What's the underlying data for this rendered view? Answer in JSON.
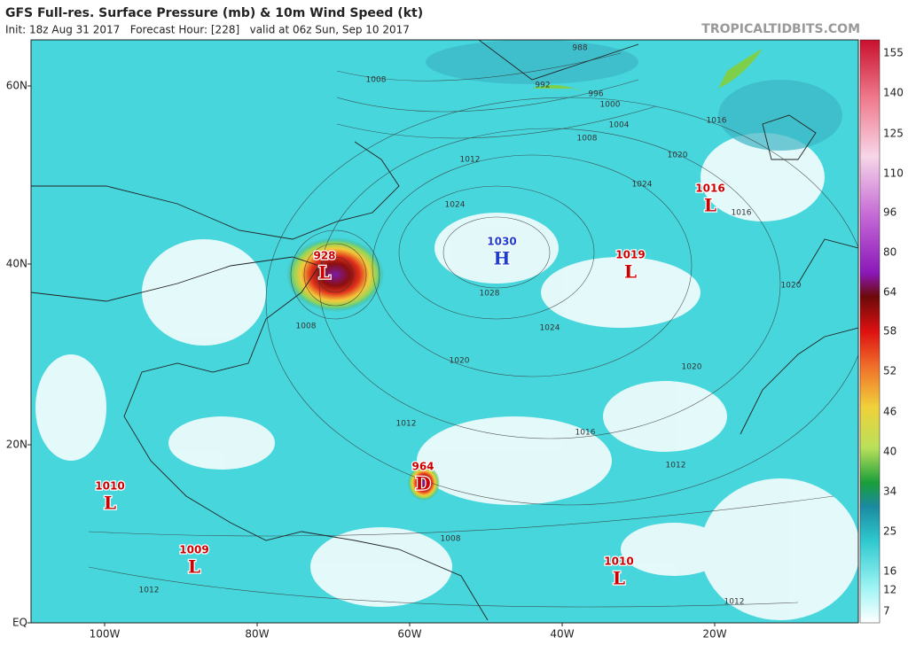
{
  "header": {
    "title": "GFS Full-res. Surface Pressure (mb) & 10m Wind Speed (kt)",
    "subtitle": "Init: 18z Aug 31 2017   Forecast Hour: [228]   valid at 06z Sun, Sep 10 2017",
    "site": "TROPICALTIDBITS.COM"
  },
  "map": {
    "lat_labels": [
      "60N",
      "40N",
      "20N",
      "EQ"
    ],
    "lon_labels": [
      "100W",
      "80W",
      "60W",
      "40W",
      "20W"
    ],
    "centers": [
      {
        "pressure": "928",
        "symbol": "L"
      },
      {
        "pressure": "1030",
        "symbol": "H"
      },
      {
        "pressure": "1019",
        "symbol": "L"
      },
      {
        "pressure": "1016",
        "symbol": "L"
      },
      {
        "pressure": "964",
        "symbol": "D"
      },
      {
        "pressure": "1010",
        "symbol": "L"
      },
      {
        "pressure": "1009",
        "symbol": "L"
      },
      {
        "pressure": "1010",
        "symbol": "L"
      }
    ],
    "isobar_labels": [
      "988",
      "992",
      "996",
      "1000",
      "1004",
      "1008",
      "1008",
      "1012",
      "1016",
      "1020",
      "1024",
      "1024",
      "1028",
      "1024",
      "1020",
      "1020",
      "1016",
      "1012",
      "1012",
      "1008",
      "1008",
      "1012",
      "1012",
      "1020",
      "1016"
    ]
  },
  "colorbar": {
    "labels": [
      "155",
      "140",
      "125",
      "110",
      "96",
      "80",
      "64",
      "58",
      "52",
      "46",
      "40",
      "34",
      "25",
      "16",
      "12",
      "7"
    ]
  }
}
